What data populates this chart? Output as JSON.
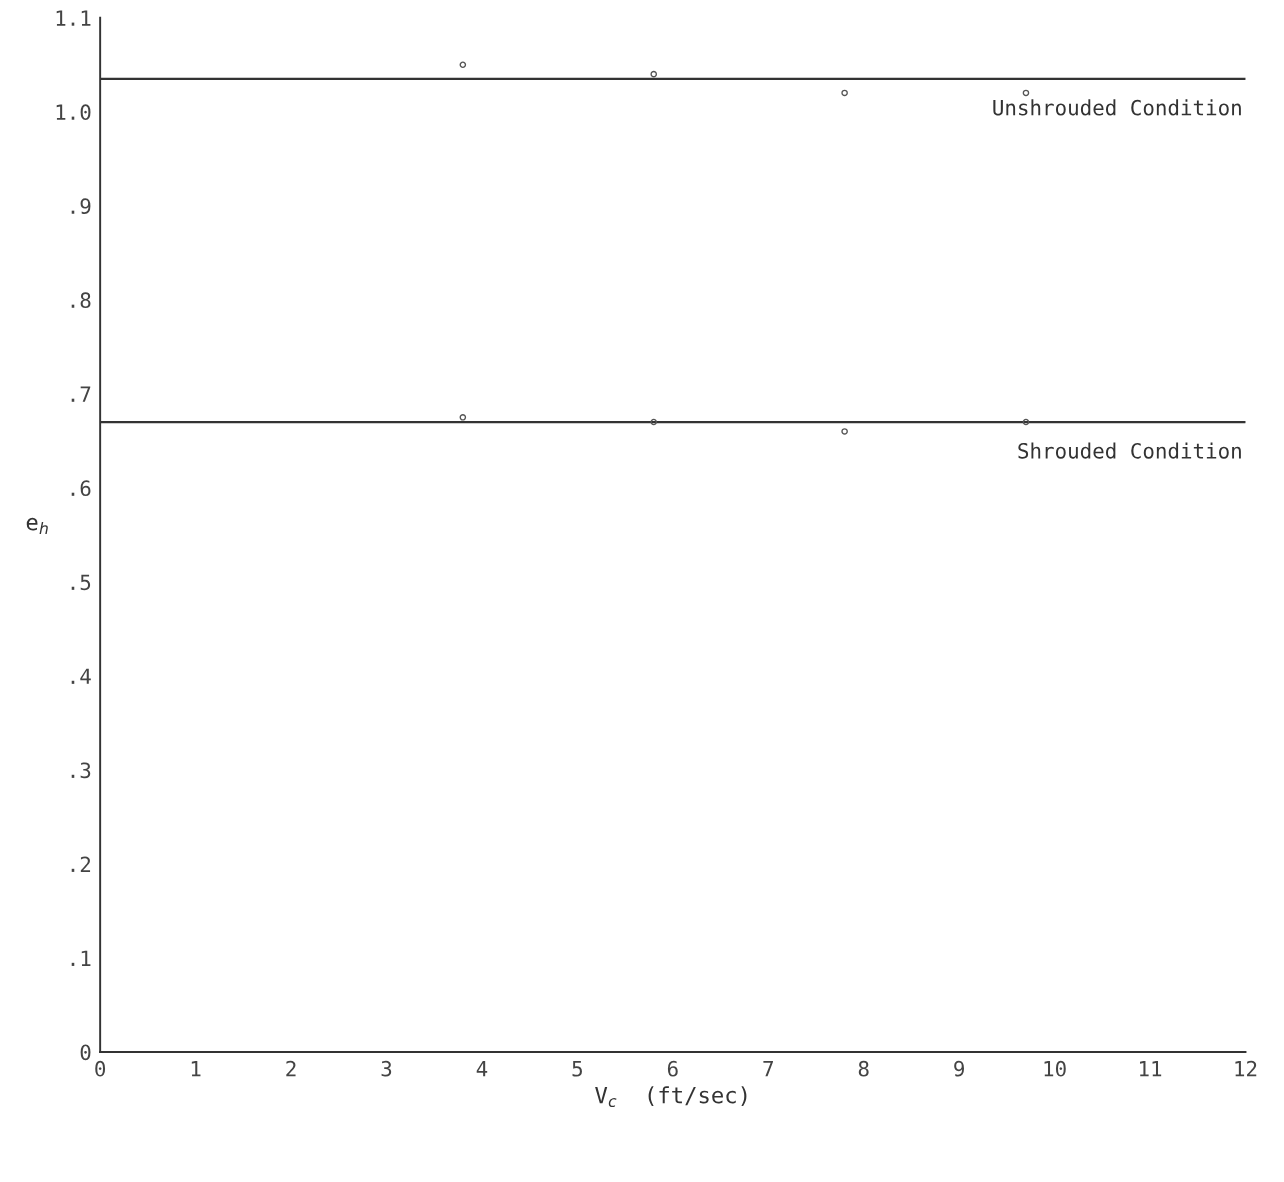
{
  "chart_data": {
    "type": "line",
    "xlabel": "V$_{c}$  (ft/sec)",
    "ylabel": "e$_{h}$",
    "xlim": [
      0,
      12
    ],
    "ylim": [
      0,
      1.1
    ],
    "xticks": [
      0,
      1,
      2,
      3,
      4,
      5,
      6,
      7,
      8,
      9,
      10,
      11,
      12
    ],
    "yticks": [
      0,
      {
        "value": 0.1,
        "label": ".1"
      },
      {
        "value": 0.2,
        "label": ".2"
      },
      {
        "value": 0.3,
        "label": ".3"
      },
      {
        "value": 0.4,
        "label": ".4"
      },
      {
        "value": 0.5,
        "label": ".5"
      },
      {
        "value": 0.6,
        "label": ".6"
      },
      {
        "value": 0.7,
        "label": ".7"
      },
      {
        "value": 0.8,
        "label": ".8"
      },
      {
        "value": 0.9,
        "label": ".9"
      },
      {
        "value": 1.0,
        "label": "1.0"
      },
      {
        "value": 1.1,
        "label": "1.1"
      }
    ],
    "grid": false,
    "legend": false,
    "series": [
      {
        "color": "#333333",
        "x": [
          0,
          12
        ],
        "values": [
          1.035,
          1.035
        ],
        "marker": "none"
      },
      {
        "color": "#333333",
        "x": [
          0,
          12
        ],
        "values": [
          0.67,
          0.67
        ],
        "marker": "none"
      },
      {
        "type": "scatter",
        "color": "#555555",
        "x": [
          3.8,
          5.8,
          7.8,
          9.7
        ],
        "values": [
          1.05,
          1.04,
          1.02,
          1.02
        ],
        "marker": "circle"
      },
      {
        "type": "scatter",
        "color": "#555555",
        "x": [
          3.8,
          5.8,
          7.8,
          9.7
        ],
        "values": [
          0.675,
          0.67,
          0.66,
          0.67
        ],
        "marker": "circle"
      }
    ],
    "annotations": [
      "Unshrouded Condition",
      "Shrouded Condition"
    ]
  }
}
